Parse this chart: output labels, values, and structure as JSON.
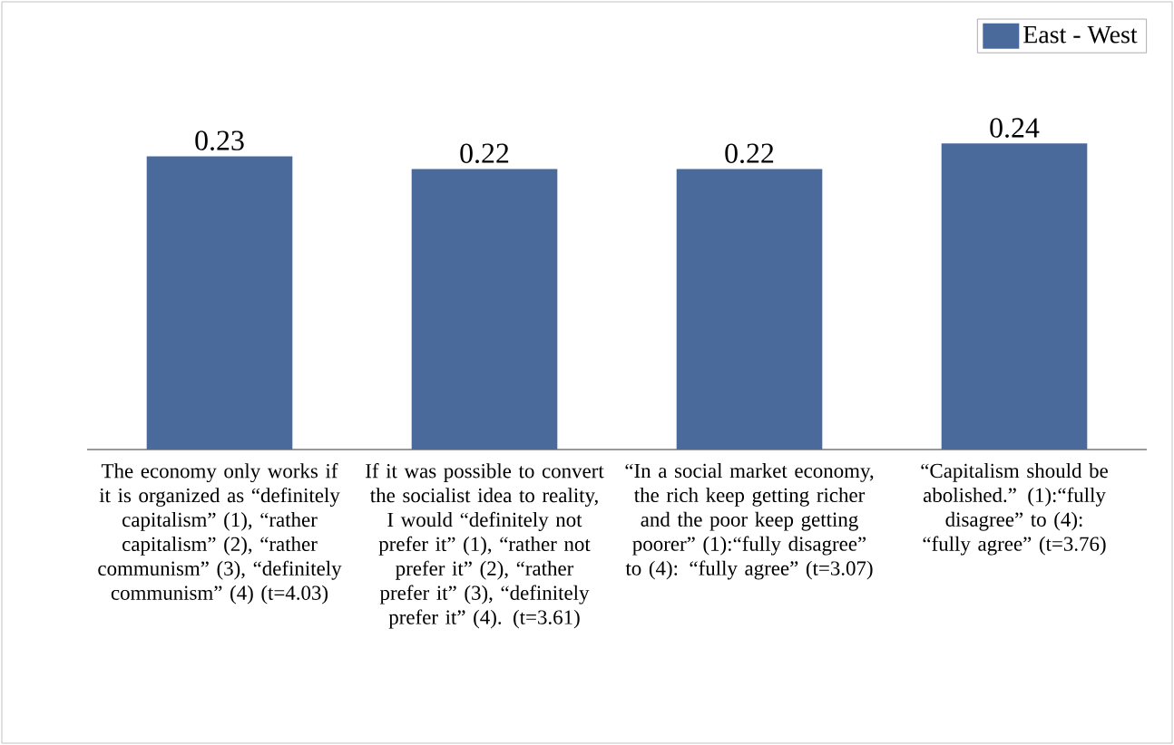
{
  "chart_data": {
    "type": "bar",
    "categories": [
      "The economy only works if it is organized as “definitely capitalism” (1), “rather capitalism” (2), “rather communism” (3), “definitely communism” (4) (t=4.03)",
      "If it was possible to convert the socialist idea to reality, I would “definitely not prefer it” (1), “rather not prefer it” (2), “rather prefer it” (3), “definitely prefer it” (4). (t=3.61)",
      "“In a social market economy, the rich keep getting richer and the poor keep getting poorer” (1):“fully disagree” to (4): “fully agree” (t=3.07)",
      "“Capitalism should be abolished.” (1):“fully disagree” to (4): “fully agree” (t=3.76)"
    ],
    "series": [
      {
        "name": "East - West",
        "color": "#4a6a9c",
        "values": [
          0.23,
          0.22,
          0.22,
          0.24
        ]
      }
    ],
    "data_labels": true,
    "legend": "top right"
  }
}
